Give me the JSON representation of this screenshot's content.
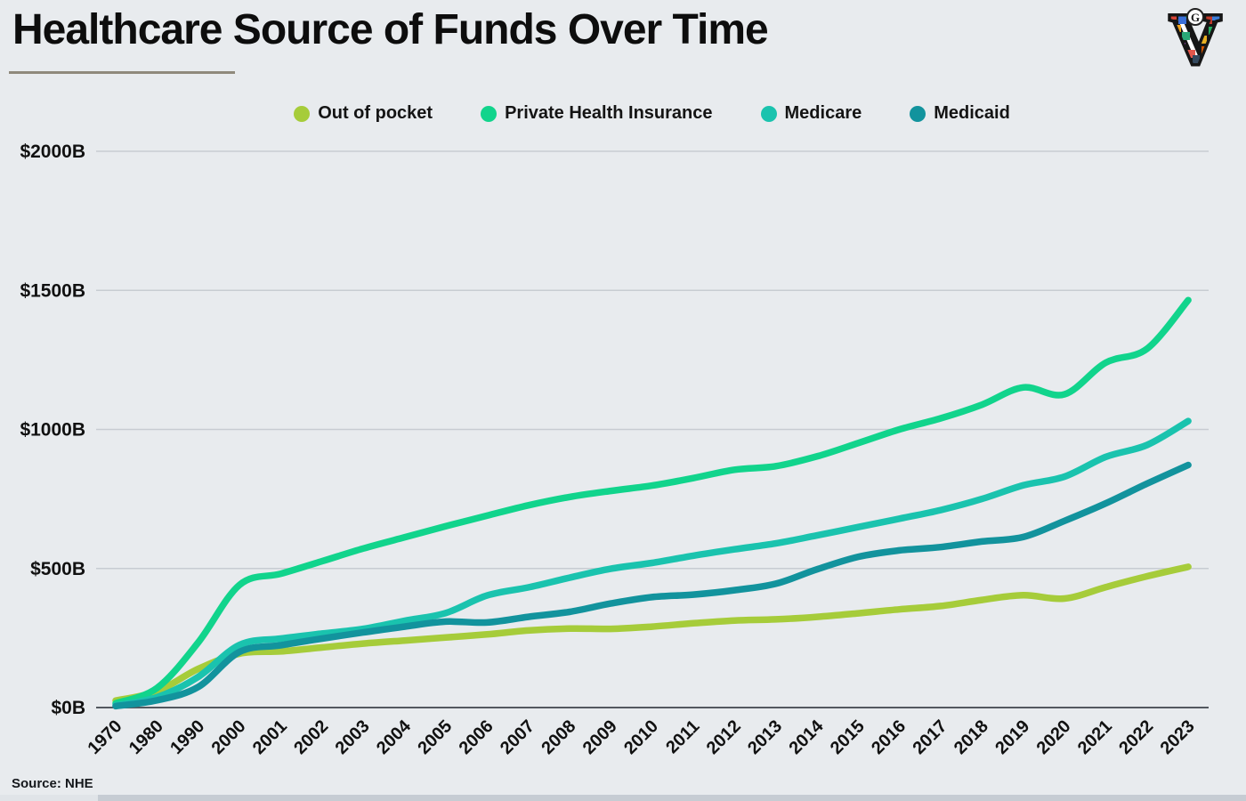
{
  "page": {
    "title": "Healthcare Source of Funds Over Time",
    "source_note": "Source: NHE",
    "background_color": "#e8ebee",
    "logo": {
      "letter": "V",
      "badge_letter": "G"
    }
  },
  "chart_data": {
    "type": "line",
    "title": "Healthcare Source of Funds Over Time",
    "unit": "billions of US dollars",
    "x_categories": [
      "1970",
      "1980",
      "1990",
      "2000",
      "2001",
      "2002",
      "2003",
      "2004",
      "2005",
      "2006",
      "2007",
      "2008",
      "2009",
      "2010",
      "2011",
      "2012",
      "2013",
      "2014",
      "2015",
      "2016",
      "2017",
      "2018",
      "2019",
      "2020",
      "2021",
      "2022",
      "2023"
    ],
    "x_label_rotation": -45,
    "ylim": [
      0,
      2000
    ],
    "grid": true,
    "legend_position": "top",
    "y_ticks": [
      {
        "value": 0,
        "label": "$0B"
      },
      {
        "value": 500,
        "label": "$500B"
      },
      {
        "value": 1000,
        "label": "$1000B"
      },
      {
        "value": 1500,
        "label": "$1500B"
      },
      {
        "value": 2000,
        "label": "$2000B"
      }
    ],
    "series": [
      {
        "name": "Out of pocket",
        "color": "#a6cc3a",
        "values": [
          25,
          58,
          139,
          194,
          202,
          216,
          230,
          241,
          252,
          263,
          277,
          284,
          283,
          291,
          303,
          313,
          317,
          326,
          339,
          353,
          365,
          387,
          404,
          392,
          433,
          472,
          506
        ]
      },
      {
        "name": "Private Health Insurance",
        "color": "#11d48c",
        "values": [
          15,
          70,
          234,
          441,
          481,
          526,
          572,
          612,
          652,
          690,
          727,
          757,
          779,
          798,
          825,
          855,
          868,
          903,
          951,
          1000,
          1040,
          1089,
          1151,
          1126,
          1240,
          1290,
          1465
        ]
      },
      {
        "name": "Medicare",
        "color": "#1ac3ae",
        "values": [
          8,
          37,
          110,
          225,
          248,
          266,
          283,
          312,
          340,
          403,
          432,
          467,
          499,
          520,
          546,
          569,
          590,
          619,
          649,
          679,
          710,
          750,
          799,
          830,
          901,
          944,
          1030
        ]
      },
      {
        "name": "Medicaid",
        "color": "#12939d",
        "values": [
          5,
          26,
          74,
          200,
          224,
          248,
          270,
          291,
          309,
          306,
          326,
          344,
          374,
          397,
          406,
          422,
          445,
          497,
          542,
          565,
          577,
          597,
          613,
          671,
          734,
          805,
          872
        ]
      }
    ],
    "axis_colors": {
      "gridline": "#c7ccd2",
      "zero_line": "#53585f",
      "tick_text": "#111111"
    }
  }
}
